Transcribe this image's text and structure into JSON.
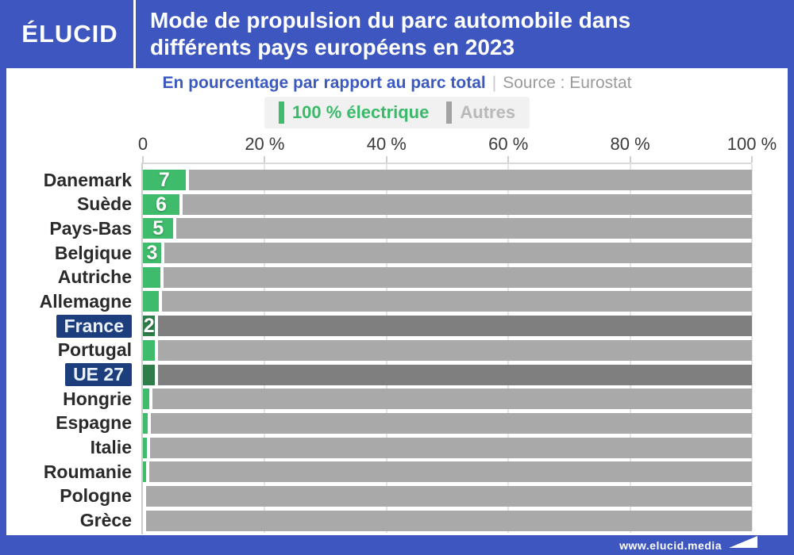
{
  "header": {
    "logo_text": "ÉLUCID",
    "title": "Mode de propulsion du parc automobile dans différents pays européens en 2023"
  },
  "subtitle": {
    "text": "En pourcentage par rapport au parc total",
    "separator": "|",
    "source": "Source : Eurostat"
  },
  "legend": {
    "items": [
      {
        "label": "100 % électrique",
        "swatch_color": "#3fbb6c",
        "label_color": "#3bb96a"
      },
      {
        "label": "Autres",
        "swatch_color": "#a2a2a2",
        "label_color": "#b9b9b9"
      }
    ]
  },
  "chart_data": {
    "type": "bar",
    "orientation": "horizontal",
    "stacked": true,
    "title": "Mode de propulsion du parc automobile dans différents pays européens en 2023",
    "subtitle": "En pourcentage par rapport au parc total",
    "source": "Source : Eurostat",
    "xlim": [
      0,
      100
    ],
    "x_tick_labels": [
      "0",
      "20 %",
      "40 %",
      "60 %",
      "80 %",
      "100 %"
    ],
    "x_tick_values": [
      0,
      20,
      40,
      60,
      80,
      100
    ],
    "legend_position": "top",
    "grid": "ticks-only",
    "categories": [
      "Danemark",
      "Suède",
      "Pays-Bas",
      "Belgique",
      "Autriche",
      "Allemagne",
      "France",
      "Portugal",
      "UE 27",
      "Hongrie",
      "Espagne",
      "Italie",
      "Roumanie",
      "Pologne",
      "Grèce"
    ],
    "series": [
      {
        "name": "100 % électrique",
        "values": [
          7,
          6,
          5,
          3,
          2.9,
          2.6,
          2,
          1.9,
          1.9,
          1.1,
          0.8,
          0.6,
          0.5,
          0,
          0
        ]
      },
      {
        "name": "Autres",
        "values": [
          93,
          94,
          95,
          97,
          97.1,
          97.4,
          98,
          98.1,
          98.1,
          98.9,
          99.2,
          99.4,
          99.5,
          100,
          100
        ]
      }
    ],
    "bar_value_labels": [
      "7",
      "6",
      "5",
      "3",
      "",
      "",
      "2",
      "",
      "",
      "",
      "",
      "",
      "",
      "",
      ""
    ],
    "highlighted_categories": [
      "France",
      "UE 27"
    ]
  },
  "colors": {
    "brand_blue": "#3e57c0",
    "electric_green": "#3fbb6c",
    "electric_green_highlight": "#2e7d4a",
    "others_gray": "#a9a9a9",
    "others_gray_highlight": "#7f7f7f",
    "highlight_label_bg": "#1d3e7d",
    "highlight_label_text": "#e9f1fc"
  },
  "footer": {
    "url": "www.elucid.media"
  }
}
